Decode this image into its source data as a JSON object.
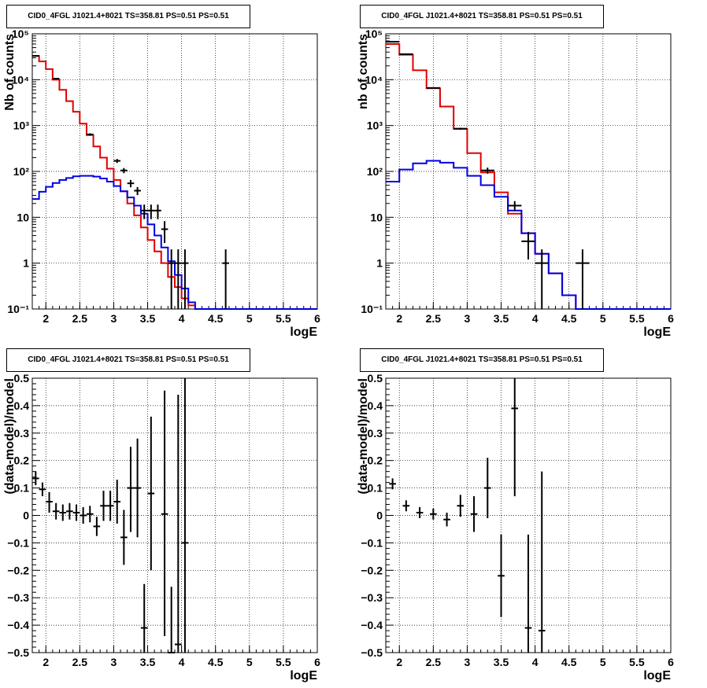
{
  "charts": [
    {
      "title": "CID0_4FGL J1021.4+8021 TS=358.81 PS=0.51 PS=0.51",
      "xlabel": "logE",
      "ylabel": "Nb of counts",
      "xlim": [
        1.8,
        6.0
      ],
      "ylim": [
        0.1,
        100000
      ],
      "log_y": true,
      "x_ticks": [
        "2",
        "2.5",
        "3",
        "3.5",
        "4",
        "4.5",
        "5",
        "5.5",
        "6"
      ],
      "y_ticks": [
        "10⁻¹",
        "1",
        "10",
        "10²",
        "10³",
        "10⁴",
        "10⁵"
      ]
    },
    {
      "title": "CID0_4FGL J1021.4+8021 TS=358.81 PS=0.51 PS=0.51",
      "xlabel": "logE",
      "ylabel": "nb of counts",
      "xlim": [
        1.8,
        6.0
      ],
      "ylim": [
        0.1,
        100000
      ],
      "log_y": true,
      "x_ticks": [
        "2",
        "2.5",
        "3",
        "3.5",
        "4",
        "4.5",
        "5",
        "5.5",
        "6"
      ],
      "y_ticks": [
        "10⁻¹",
        "1",
        "10",
        "10²",
        "10³",
        "10⁴",
        "10⁵"
      ]
    },
    {
      "title": "CID0_4FGL J1021.4+8021 TS=358.81 PS=0.51 PS=0.51",
      "xlabel": "logE",
      "ylabel": "(data-model)/model",
      "xlim": [
        1.8,
        6.0
      ],
      "ylim": [
        -0.5,
        0.5
      ],
      "log_y": false,
      "x_ticks": [
        "2",
        "2.5",
        "3",
        "3.5",
        "4",
        "4.5",
        "5",
        "5.5",
        "6"
      ],
      "y_ticks": [
        "−0.5",
        "−0.4",
        "−0.3",
        "−0.2",
        "−0.1",
        "0",
        "0.1",
        "0.2",
        "0.3",
        "0.4",
        "0.5"
      ]
    },
    {
      "title": "CID0_4FGL J1021.4+8021 TS=358.81 PS=0.51 PS=0.51",
      "xlabel": "logE",
      "ylabel": "(data-model)/model",
      "xlim": [
        1.8,
        6.0
      ],
      "ylim": [
        -0.5,
        0.5
      ],
      "log_y": false,
      "x_ticks": [
        "2",
        "2.5",
        "3",
        "3.5",
        "4",
        "4.5",
        "5",
        "5.5",
        "6"
      ],
      "y_ticks": [
        "−0.5",
        "−0.4",
        "−0.3",
        "−0.2",
        "−0.1",
        "0",
        "0.1",
        "0.2",
        "0.3",
        "0.4",
        "0.5"
      ]
    }
  ],
  "chart_data": [
    {
      "type": "line",
      "title": "CID0_4FGL J1021.4+8021 TS=358.81 PS=0.51 PS=0.51",
      "xlabel": "logE",
      "ylabel": "Nb of counts",
      "xlim": [
        1.8,
        6.0
      ],
      "ylim": [
        0.1,
        100000
      ],
      "yscale": "log",
      "grid": true,
      "bin_edges": [
        1.8,
        1.9,
        2.0,
        2.1,
        2.2,
        2.3,
        2.4,
        2.5,
        2.6,
        2.7,
        2.8,
        2.9,
        3.0,
        3.1,
        3.2,
        3.3,
        3.4,
        3.5,
        3.6,
        3.7,
        3.8,
        3.9,
        4.0,
        4.1,
        4.2,
        4.3,
        4.4,
        4.5,
        4.6,
        4.7,
        4.8,
        4.9,
        5.0,
        5.1,
        5.2,
        5.3,
        5.4,
        5.5,
        5.6,
        5.7,
        5.8,
        5.9,
        6.0
      ],
      "series": [
        {
          "color": "#e00000",
          "values": [
            33000,
            25000,
            17000,
            10000,
            6000,
            3400,
            2000,
            1100,
            620,
            350,
            200,
            115,
            65,
            37,
            20,
            11,
            6,
            3.2,
            1.8,
            1.0,
            0.5,
            0.3,
            0.17,
            0.12,
            0.1,
            0.1,
            0.1,
            0.1,
            0.1,
            0.1,
            0.1,
            0.1,
            0.1,
            0.1,
            0.1,
            0.1,
            0.1,
            0.1,
            0.1,
            0.1,
            0.1,
            0.1
          ]
        },
        {
          "color": "#0000e0",
          "values": [
            25,
            36,
            46,
            56,
            65,
            72,
            78,
            80,
            80,
            77,
            70,
            60,
            48,
            37,
            27,
            18,
            12,
            7,
            4,
            2.2,
            1.1,
            0.55,
            0.28,
            0.14,
            0.1,
            0.1,
            0.1,
            0.1,
            0.1,
            0.1,
            0.1,
            0.1,
            0.1,
            0.1,
            0.1,
            0.1,
            0.1,
            0.1,
            0.1,
            0.1,
            0.1,
            0.1
          ]
        }
      ],
      "points": [
        {
          "x": 1.85,
          "y": 33000,
          "yerr": [
            0.99,
            1.01
          ]
        },
        {
          "x": 2.15,
          "y": 10500,
          "yerr": [
            0.98,
            1.02
          ]
        },
        {
          "x": 2.65,
          "y": 640,
          "yerr": [
            0.94,
            1.06
          ]
        },
        {
          "x": 3.05,
          "y": 170,
          "yerr": [
            0.9,
            1.1
          ]
        },
        {
          "x": 3.15,
          "y": 105,
          "yerr": [
            0.87,
            1.13
          ]
        },
        {
          "x": 3.25,
          "y": 55,
          "yerr": [
            0.82,
            1.18
          ]
        },
        {
          "x": 3.35,
          "y": 38,
          "yerr": [
            0.8,
            1.2
          ]
        },
        {
          "x": 3.45,
          "y": 14,
          "yerr": [
            0.65,
            1.35
          ]
        },
        {
          "x": 3.55,
          "y": 14,
          "yerr": [
            0.65,
            1.35
          ]
        },
        {
          "x": 3.65,
          "y": 14,
          "yerr": [
            0.65,
            1.35
          ]
        },
        {
          "x": 3.75,
          "y": 5.5,
          "yerr": [
            0.5,
            1.5
          ]
        },
        {
          "x": 3.85,
          "y": 1.0,
          "yerr": [
            0.0,
            2.0
          ]
        },
        {
          "x": 3.95,
          "y": 1.0,
          "yerr": [
            0.0,
            2.0
          ]
        },
        {
          "x": 4.05,
          "y": 1.0,
          "yerr": [
            0.0,
            2.0
          ]
        },
        {
          "x": 4.65,
          "y": 1.0,
          "yerr": [
            0.0,
            2.0
          ]
        }
      ]
    },
    {
      "type": "line",
      "title": "CID0_4FGL J1021.4+8021 TS=358.81 PS=0.51 PS=0.51",
      "xlabel": "logE",
      "ylabel": "nb of counts",
      "xlim": [
        1.8,
        6.0
      ],
      "ylim": [
        0.1,
        100000
      ],
      "yscale": "log",
      "grid": true,
      "bin_edges": [
        1.8,
        2.0,
        2.2,
        2.4,
        2.6,
        2.8,
        3.0,
        3.2,
        3.4,
        3.6,
        3.8,
        4.0,
        4.2,
        4.4,
        4.6,
        4.8,
        5.0,
        5.2,
        5.4,
        5.6,
        5.8,
        6.0
      ],
      "series": [
        {
          "color": "#e00000",
          "values": [
            60000,
            35000,
            16000,
            6500,
            2600,
            850,
            250,
            95,
            35,
            12,
            4.5,
            1.6,
            0.6,
            0.2,
            0.1,
            0.1,
            0.1,
            0.1,
            0.1,
            0.1,
            0.1
          ]
        },
        {
          "color": "#0000e0",
          "values": [
            60,
            110,
            150,
            170,
            155,
            120,
            80,
            50,
            28,
            14,
            4.5,
            1.6,
            0.6,
            0.2,
            0.1,
            0.1,
            0.1,
            0.1,
            0.1,
            0.1,
            0.1
          ]
        }
      ],
      "points": [
        {
          "x": 1.9,
          "y": 67000,
          "yerr": [
            0.99,
            1.01
          ]
        },
        {
          "x": 2.1,
          "y": 36000,
          "yerr": [
            0.99,
            1.01
          ]
        },
        {
          "x": 2.5,
          "y": 6600,
          "yerr": [
            0.97,
            1.03
          ]
        },
        {
          "x": 2.9,
          "y": 850,
          "yerr": [
            0.95,
            1.05
          ]
        },
        {
          "x": 3.3,
          "y": 105,
          "yerr": [
            0.85,
            1.15
          ]
        },
        {
          "x": 3.7,
          "y": 18,
          "yerr": [
            0.75,
            1.25
          ]
        },
        {
          "x": 3.9,
          "y": 3.0,
          "yerr": [
            0.4,
            1.6
          ]
        },
        {
          "x": 4.1,
          "y": 1.0,
          "yerr": [
            0.0,
            2.0
          ]
        },
        {
          "x": 4.7,
          "y": 1.0,
          "yerr": [
            0.0,
            2.0
          ]
        }
      ]
    },
    {
      "type": "scatter",
      "title": "CID0_4FGL J1021.4+8021 TS=358.81 PS=0.51 PS=0.51",
      "xlabel": "logE",
      "ylabel": "(data-model)/model",
      "xlim": [
        1.8,
        6.0
      ],
      "ylim": [
        -0.5,
        0.5
      ],
      "grid": true,
      "points": [
        {
          "x": 1.85,
          "y": 0.135,
          "ylo": 0.11,
          "yhi": 0.16
        },
        {
          "x": 1.95,
          "y": 0.095,
          "ylo": 0.07,
          "yhi": 0.12
        },
        {
          "x": 2.05,
          "y": 0.05,
          "ylo": 0.01,
          "yhi": 0.085
        },
        {
          "x": 2.15,
          "y": 0.015,
          "ylo": -0.015,
          "yhi": 0.045
        },
        {
          "x": 2.25,
          "y": 0.01,
          "ylo": -0.02,
          "yhi": 0.04
        },
        {
          "x": 2.35,
          "y": 0.015,
          "ylo": -0.015,
          "yhi": 0.045
        },
        {
          "x": 2.45,
          "y": 0.01,
          "ylo": -0.02,
          "yhi": 0.04
        },
        {
          "x": 2.55,
          "y": 0.0,
          "ylo": -0.03,
          "yhi": 0.03
        },
        {
          "x": 2.65,
          "y": 0.005,
          "ylo": -0.025,
          "yhi": 0.035
        },
        {
          "x": 2.75,
          "y": -0.04,
          "ylo": -0.075,
          "yhi": -0.005
        },
        {
          "x": 2.85,
          "y": 0.035,
          "ylo": -0.02,
          "yhi": 0.09
        },
        {
          "x": 2.95,
          "y": 0.035,
          "ylo": -0.02,
          "yhi": 0.09
        },
        {
          "x": 3.05,
          "y": 0.05,
          "ylo": -0.03,
          "yhi": 0.13
        },
        {
          "x": 3.15,
          "y": -0.08,
          "ylo": -0.18,
          "yhi": 0.02
        },
        {
          "x": 3.25,
          "y": 0.1,
          "ylo": -0.06,
          "yhi": 0.25
        },
        {
          "x": 3.35,
          "y": 0.1,
          "ylo": -0.08,
          "yhi": 0.28
        },
        {
          "x": 3.45,
          "y": -0.41,
          "ylo": -0.5,
          "yhi": -0.25
        },
        {
          "x": 3.55,
          "y": 0.08,
          "ylo": -0.2,
          "yhi": 0.36
        },
        {
          "x": 3.75,
          "y": 0.005,
          "ylo": -0.44,
          "yhi": 0.455
        },
        {
          "x": 3.85,
          "y": -0.5,
          "ylo": -0.5,
          "yhi": -0.26
        },
        {
          "x": 3.95,
          "y": -0.47,
          "ylo": -0.5,
          "yhi": 0.44
        },
        {
          "x": 4.05,
          "y": -0.1,
          "ylo": -0.5,
          "yhi": 0.5
        }
      ]
    },
    {
      "type": "scatter",
      "title": "CID0_4FGL J1021.4+8021 TS=358.81 PS=0.51 PS=0.51",
      "xlabel": "logE",
      "ylabel": "(data-model)/model",
      "xlim": [
        1.8,
        6.0
      ],
      "ylim": [
        -0.5,
        0.5
      ],
      "grid": true,
      "points": [
        {
          "x": 1.9,
          "y": 0.115,
          "ylo": 0.095,
          "yhi": 0.135
        },
        {
          "x": 2.1,
          "y": 0.035,
          "ylo": 0.015,
          "yhi": 0.055
        },
        {
          "x": 2.3,
          "y": 0.01,
          "ylo": -0.01,
          "yhi": 0.03
        },
        {
          "x": 2.5,
          "y": 0.005,
          "ylo": -0.015,
          "yhi": 0.025
        },
        {
          "x": 2.7,
          "y": -0.015,
          "ylo": -0.04,
          "yhi": 0.01
        },
        {
          "x": 2.9,
          "y": 0.035,
          "ylo": -0.005,
          "yhi": 0.075
        },
        {
          "x": 3.1,
          "y": 0.005,
          "ylo": -0.06,
          "yhi": 0.07
        },
        {
          "x": 3.3,
          "y": 0.1,
          "ylo": -0.01,
          "yhi": 0.21
        },
        {
          "x": 3.5,
          "y": -0.22,
          "ylo": -0.37,
          "yhi": -0.07
        },
        {
          "x": 3.7,
          "y": 0.39,
          "ylo": 0.07,
          "yhi": 0.5
        },
        {
          "x": 3.9,
          "y": -0.41,
          "ylo": -0.5,
          "yhi": -0.07
        },
        {
          "x": 4.1,
          "y": -0.42,
          "ylo": -0.5,
          "yhi": 0.16
        }
      ]
    }
  ]
}
